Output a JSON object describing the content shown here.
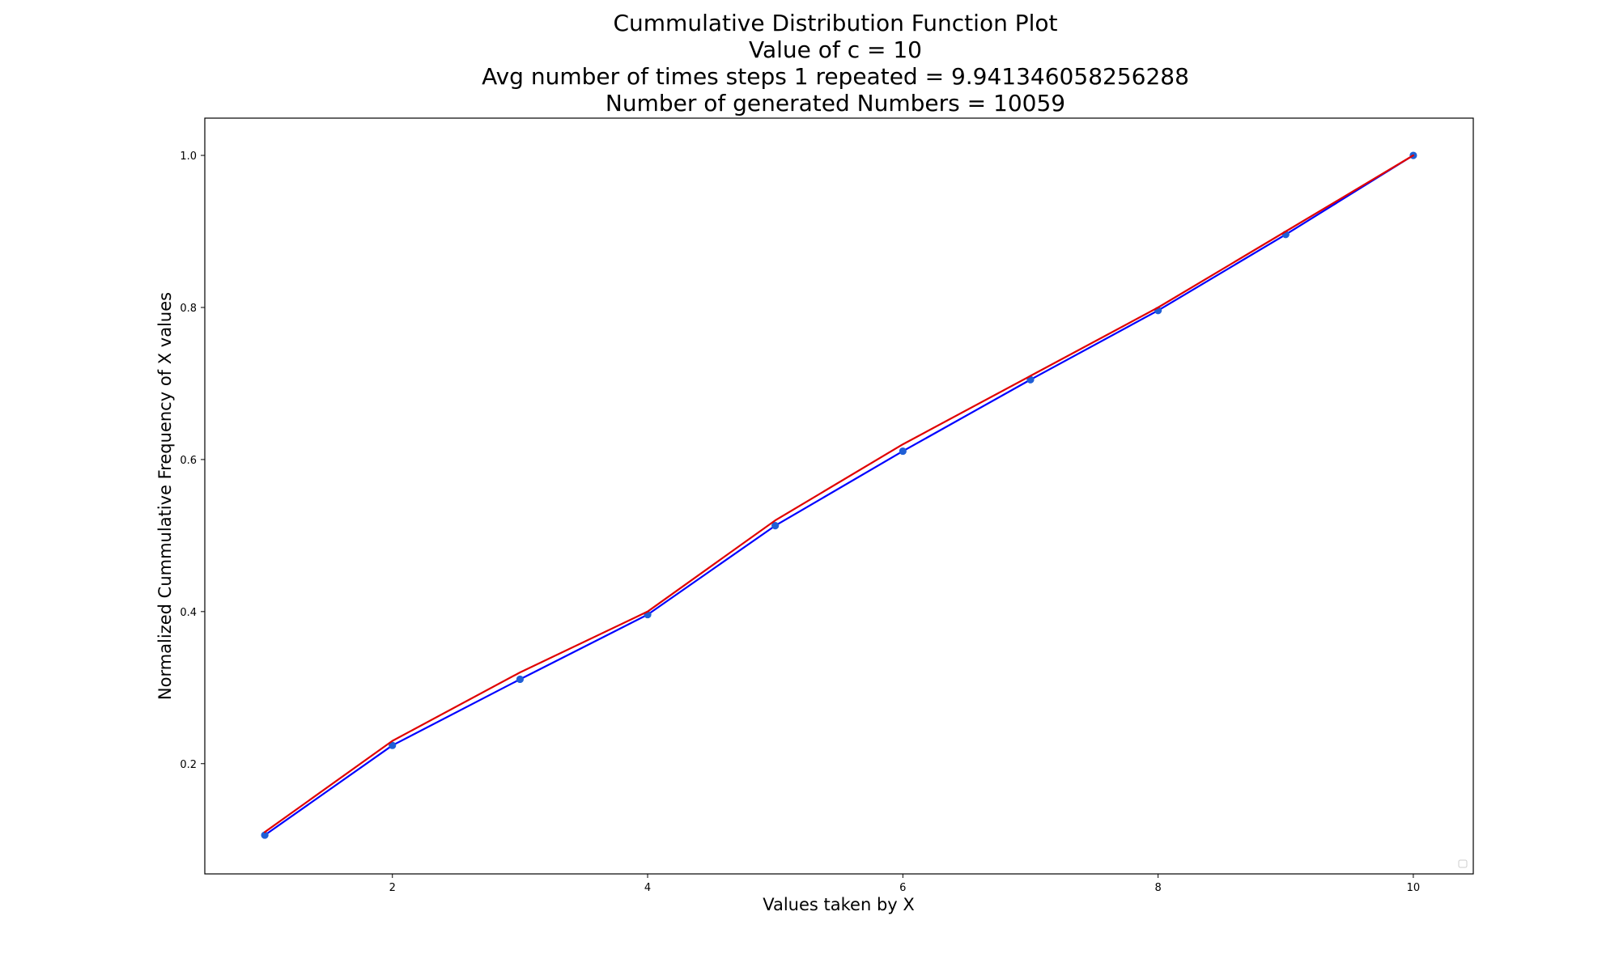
{
  "chart_data": {
    "type": "line",
    "title_lines": [
      "Cummulative Distribution Function Plot",
      "Value of c = 10",
      "Avg number of times steps 1 repeated = 9.941346058256288",
      "Number of generated Numbers = 10059"
    ],
    "xlabel": "Values taken by X",
    "ylabel": "Normalized Cummulative Frequency of X values",
    "xlim": [
      0.53,
      10.47
    ],
    "ylim": [
      0.055,
      1.049
    ],
    "xticks": [
      2,
      4,
      6,
      8,
      10
    ],
    "yticks": [
      0.2,
      0.4,
      0.6,
      0.8,
      1.0
    ],
    "xtick_labels": [
      "2",
      "4",
      "6",
      "8",
      "10"
    ],
    "ytick_labels": [
      "0.2",
      "0.4",
      "0.6",
      "0.8",
      "1.0"
    ],
    "grid": false,
    "legend": "lower right (empty)",
    "x": [
      1,
      2,
      3,
      4,
      5,
      6,
      7,
      8,
      9,
      10
    ],
    "series": [
      {
        "color": "#0000ff",
        "marker_color": "#1f5fd6",
        "markers": true,
        "values": [
          0.106,
          0.224,
          0.311,
          0.396,
          0.513,
          0.611,
          0.705,
          0.796,
          0.896,
          1.0
        ]
      },
      {
        "color": "#e00000",
        "markers": false,
        "values": [
          0.11,
          0.23,
          0.32,
          0.4,
          0.52,
          0.62,
          0.71,
          0.8,
          0.9,
          1.0
        ]
      }
    ]
  }
}
